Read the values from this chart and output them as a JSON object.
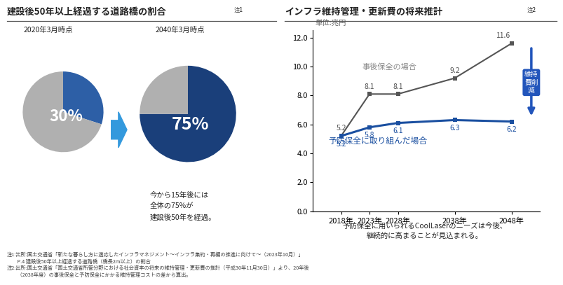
{
  "left_title": "建設後50年以上経過する道路橋の割合",
  "left_title_note": "注1",
  "right_title": "インフラ維持管理・更新費の将来推計",
  "right_title_note": "注2",
  "pie1_label": "2020年3月時点",
  "pie1_pct": 30,
  "pie1_colors": [
    "#2d5fa6",
    "#b0b0b0"
  ],
  "pie2_label": "2040年3月時点",
  "pie2_pct": 75,
  "pie2_colors": [
    "#1a3f7a",
    "#b0b0b0"
  ],
  "pie_note": "今から15年後には\n全体の75%が\n建設後50年を経過。",
  "years": [
    2018,
    2023,
    2028,
    2038,
    2048
  ],
  "jigo_values": [
    5.2,
    8.1,
    8.1,
    9.2,
    11.6
  ],
  "yobo_values": [
    5.2,
    5.8,
    6.1,
    6.3,
    6.2
  ],
  "jigo_color": "#555555",
  "yobo_color": "#1a4fa0",
  "unit_label": "単位:兆円",
  "jigo_label": "事後保全の場合",
  "yobo_label": "予防保全に取り組んだ場合",
  "chart_note": "予防保全に用いられるCoolLaserのニーズは今後、\n継続的に高まることが見込まれる。",
  "footer1": "注1:出所:国土交通省「新たな暮らし方に適応したインフラマネジメント〜インフラ集約・再編の推進に向けて〜（2023年10月）」",
  "footer1b": "　　P.4 建設後50年以上経過する道路橋（橋長2m以上）の割合",
  "footer2": "注2:出所:国土交通省「国土交通省所管分野における社会資本の将来の維持管理・更新費の推計（平成30年11月30日）」より、20年後",
  "footer2b": "　　（2038年度）の事後保全と予防保全にかかる維持管理コストの差から算出。",
  "arrow_label_lines": [
    "維持",
    "費削",
    "減"
  ],
  "bg_color": "#ffffff",
  "title_color": "#222222",
  "divider_color": "#555555",
  "xlim": [
    2013,
    2053
  ],
  "ylim": [
    0.0,
    12.5
  ],
  "yticks": [
    0.0,
    2.0,
    4.0,
    6.0,
    8.0,
    10.0,
    12.0
  ]
}
